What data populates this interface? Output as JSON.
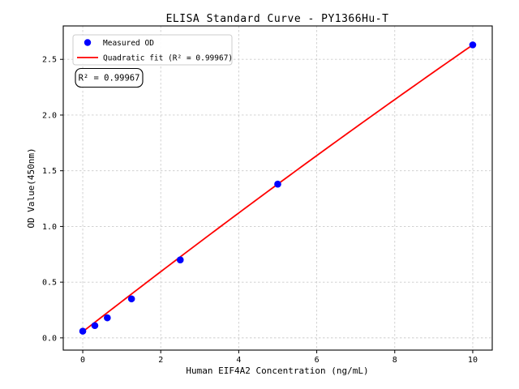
{
  "figure": {
    "background": "#ffffff"
  },
  "chart_data": {
    "type": "scatter",
    "title": "ELISA Standard Curve - PY1366Hu-T",
    "xlabel": "Human EIF4A2 Concentration (ng/mL)",
    "ylabel": "OD Value(450nm)",
    "annotation": "R² = 0.99967",
    "legend": {
      "position": "upper-left",
      "entries": [
        {
          "label": "Measured OD",
          "handle": "dot",
          "color": "#0000ff"
        },
        {
          "label": "Quadratic fit (R² = 0.99967)",
          "handle": "line",
          "color": "#ff0000"
        }
      ]
    },
    "series": [
      {
        "name": "Measured OD",
        "type": "scatter",
        "color": "#0000ff",
        "x": [
          0,
          0.31,
          0.63,
          1.25,
          2.5,
          5,
          10
        ],
        "y": [
          0.06,
          0.11,
          0.18,
          0.35,
          0.7,
          1.38,
          2.63
        ]
      },
      {
        "name": "Quadratic fit",
        "type": "line",
        "color": "#ff0000",
        "fit_coeffs": [
          0.055,
          0.2725,
          -0.0015
        ],
        "x_range": [
          0,
          10
        ],
        "r_squared": 0.99967
      }
    ],
    "x_ticks": {
      "values": [
        0,
        2,
        4,
        6,
        8,
        10
      ],
      "labels": [
        "0",
        "2",
        "4",
        "6",
        "8",
        "10"
      ]
    },
    "y_ticks": {
      "values": [
        0,
        0.5,
        1.0,
        1.5,
        2.0,
        2.5
      ],
      "labels": [
        "0.0",
        "0.5",
        "1.0",
        "1.5",
        "2.0",
        "2.5"
      ]
    },
    "xlim": [
      -0.5,
      10.5
    ],
    "ylim": [
      -0.11,
      2.8
    ],
    "grid": true,
    "grid_color": "#cccccc",
    "frame_color": "#000000",
    "legend_border_color": "#cccccc",
    "annotation_border_color": "#000000"
  }
}
